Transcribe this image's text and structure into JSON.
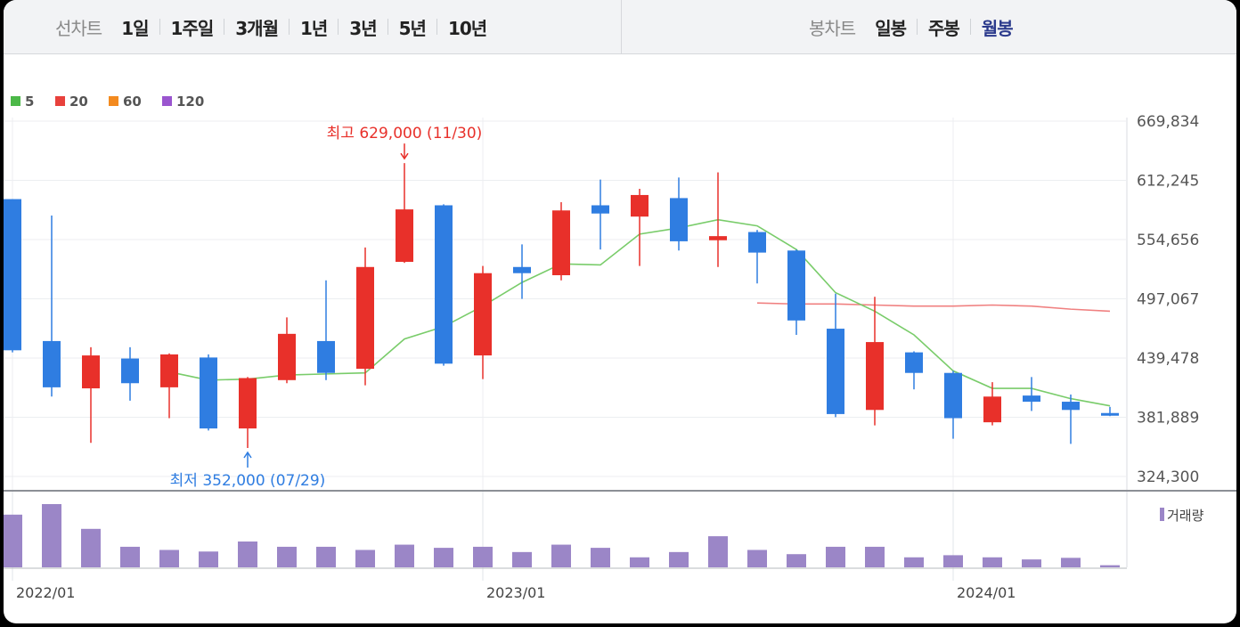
{
  "period_tabs": {
    "label": "선차트",
    "items": [
      "1일",
      "1주일",
      "3개월",
      "1년",
      "3년",
      "5년",
      "10년"
    ]
  },
  "candle_tabs": {
    "label": "봉차트",
    "items": [
      "일봉",
      "주봉",
      "월봉"
    ],
    "selected": "월봉"
  },
  "chart_data": [
    {
      "type": "candlestick",
      "legend": [
        {
          "name": "5",
          "color": "#4cb848"
        },
        {
          "name": "20",
          "color": "#e8413c"
        },
        {
          "name": "60",
          "color": "#f38a1f"
        },
        {
          "name": "120",
          "color": "#9a55cf"
        }
      ],
      "y_ticks": [
        669834,
        612245,
        554656,
        497067,
        439478,
        381889,
        324300
      ],
      "y_tick_labels": [
        "669,834",
        "612,245",
        "554,656",
        "497,067",
        "439,478",
        "381,889",
        "324,300"
      ],
      "ylim": [
        324300,
        669834
      ],
      "x_labels": [
        {
          "index": 0,
          "text": "2022/01"
        },
        {
          "index": 12,
          "text": "2023/01"
        },
        {
          "index": 24,
          "text": "2024/01"
        }
      ],
      "up_color": "#e8302a",
      "down_color": "#2f7de1",
      "candles": [
        {
          "date": "2022/01",
          "open": 594000,
          "high": 594000,
          "low": 445000,
          "close": 447000
        },
        {
          "date": "2022/02",
          "open": 456000,
          "high": 578000,
          "low": 402000,
          "close": 411000
        },
        {
          "date": "2022/03",
          "open": 410000,
          "high": 450000,
          "low": 357000,
          "close": 442000
        },
        {
          "date": "2022/04",
          "open": 439000,
          "high": 450000,
          "low": 398000,
          "close": 415000
        },
        {
          "date": "2022/05",
          "open": 411000,
          "high": 444000,
          "low": 381000,
          "close": 443000
        },
        {
          "date": "2022/06",
          "open": 440000,
          "high": 443000,
          "low": 369000,
          "close": 371000
        },
        {
          "date": "2022/07",
          "open": 371000,
          "high": 421000,
          "low": 352000,
          "close": 420000
        },
        {
          "date": "2022/08",
          "open": 418000,
          "high": 479000,
          "low": 415000,
          "close": 463000
        },
        {
          "date": "2022/09",
          "open": 456000,
          "high": 515000,
          "low": 418000,
          "close": 425000
        },
        {
          "date": "2022/10",
          "open": 429000,
          "high": 547000,
          "low": 413000,
          "close": 528000
        },
        {
          "date": "2022/11",
          "open": 533000,
          "high": 629000,
          "low": 532000,
          "close": 584000
        },
        {
          "date": "2022/12",
          "open": 588000,
          "high": 589000,
          "low": 432000,
          "close": 434000
        },
        {
          "date": "2023/01",
          "open": 442000,
          "high": 529000,
          "low": 419000,
          "close": 522000
        },
        {
          "date": "2023/02",
          "open": 528000,
          "high": 550000,
          "low": 497000,
          "close": 522000
        },
        {
          "date": "2023/03",
          "open": 520000,
          "high": 591000,
          "low": 515000,
          "close": 583000
        },
        {
          "date": "2023/04",
          "open": 588000,
          "high": 613000,
          "low": 545000,
          "close": 580000
        },
        {
          "date": "2023/05",
          "open": 577000,
          "high": 604000,
          "low": 529000,
          "close": 598000
        },
        {
          "date": "2023/06",
          "open": 595000,
          "high": 615000,
          "low": 544000,
          "close": 553000
        },
        {
          "date": "2023/07",
          "open": 554000,
          "high": 620000,
          "low": 528000,
          "close": 558000
        },
        {
          "date": "2023/08",
          "open": 562000,
          "high": 564000,
          "low": 512000,
          "close": 542000
        },
        {
          "date": "2023/09",
          "open": 544000,
          "high": 545000,
          "low": 462000,
          "close": 476000
        },
        {
          "date": "2023/10",
          "open": 468000,
          "high": 502000,
          "low": 382000,
          "close": 385000
        },
        {
          "date": "2023/11",
          "open": 389000,
          "high": 499000,
          "low": 374000,
          "close": 455000
        },
        {
          "date": "2023/12",
          "open": 445000,
          "high": 446000,
          "low": 409000,
          "close": 425000
        },
        {
          "date": "2024/01",
          "open": 425000,
          "high": 427000,
          "low": 361000,
          "close": 381000
        },
        {
          "date": "2024/02",
          "open": 377000,
          "high": 416000,
          "low": 374000,
          "close": 402000
        },
        {
          "date": "2024/03",
          "open": 403000,
          "high": 421000,
          "low": 388000,
          "close": 397000
        },
        {
          "date": "2024/04",
          "open": 397000,
          "high": 404000,
          "low": 356000,
          "close": 389000
        },
        {
          "date": "2024/05",
          "open": 386000,
          "high": 392000,
          "low": 383000,
          "close": 384000
        }
      ],
      "ma5": [
        null,
        null,
        null,
        null,
        426000,
        418000,
        419000,
        423000,
        424000,
        425000,
        458000,
        470000,
        490000,
        513000,
        531000,
        530000,
        560000,
        566000,
        574000,
        568000,
        545000,
        503000,
        485000,
        462000,
        427000,
        410000,
        410000,
        400000,
        393000
      ],
      "ma20": [
        null,
        null,
        null,
        null,
        null,
        null,
        null,
        null,
        null,
        null,
        null,
        null,
        null,
        null,
        null,
        null,
        null,
        null,
        null,
        493000,
        492000,
        492000,
        491000,
        490000,
        490000,
        491000,
        490000,
        487000,
        485000
      ],
      "annotations": [
        {
          "index": 10,
          "kind": "high",
          "text": "최고 629,000 (11/30)",
          "color": "#e8302a"
        },
        {
          "index": 6,
          "kind": "low",
          "text": "최저 352,000 (07/29)",
          "color": "#2f7de1"
        }
      ]
    },
    {
      "type": "bar",
      "legend": "거래량",
      "color": "#9b86c7",
      "values": [
        1.0,
        1.2,
        0.73,
        0.39,
        0.33,
        0.3,
        0.49,
        0.39,
        0.39,
        0.33,
        0.43,
        0.37,
        0.39,
        0.29,
        0.43,
        0.37,
        0.19,
        0.29,
        0.59,
        0.33,
        0.25,
        0.39,
        0.39,
        0.19,
        0.23,
        0.19,
        0.15,
        0.18,
        0.04
      ]
    }
  ]
}
